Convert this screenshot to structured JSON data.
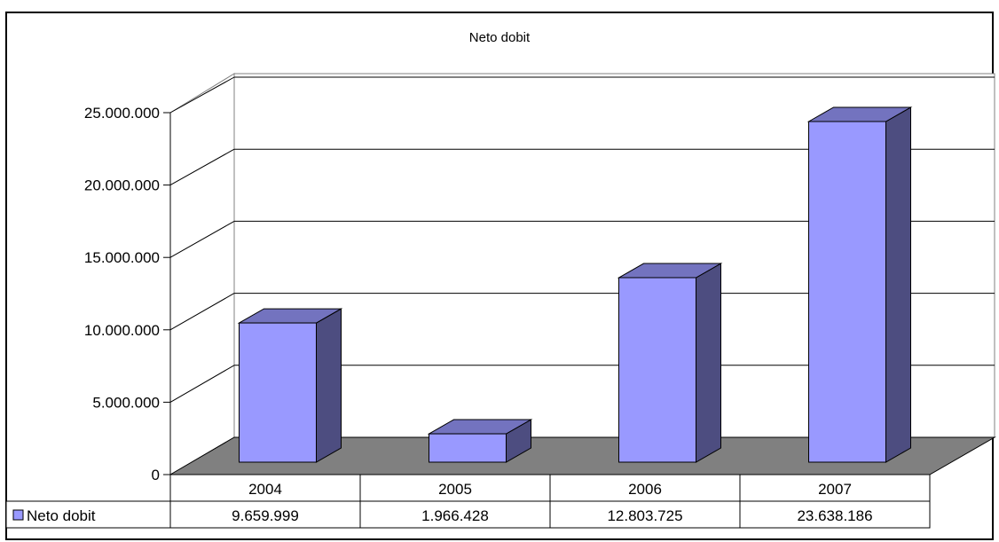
{
  "chart_data": {
    "type": "bar",
    "title": "Neto dobit",
    "categories": [
      "2004",
      "2005",
      "2006",
      "2007"
    ],
    "series": [
      {
        "name": "Neto dobit",
        "values": [
          9659999,
          1966428,
          12803725,
          23638186
        ],
        "value_labels": [
          "9.659.999",
          "1.966.428",
          "12.803.725",
          "23.638.186"
        ]
      }
    ],
    "y_ticks": [
      0,
      5000000,
      10000000,
      15000000,
      20000000,
      25000000
    ],
    "y_tick_labels": [
      "0",
      "5.000.000",
      "10.000.000",
      "15.000.000",
      "20.000.000",
      "25.000.000"
    ],
    "ylim": [
      0,
      25000000
    ],
    "grid": true,
    "legend": "data-table",
    "colors": {
      "bar_front": "#9999ff",
      "bar_side": "#4d4d80",
      "bar_top": "#7373bf",
      "floor": "#808080",
      "gridline": "#000000"
    }
  }
}
